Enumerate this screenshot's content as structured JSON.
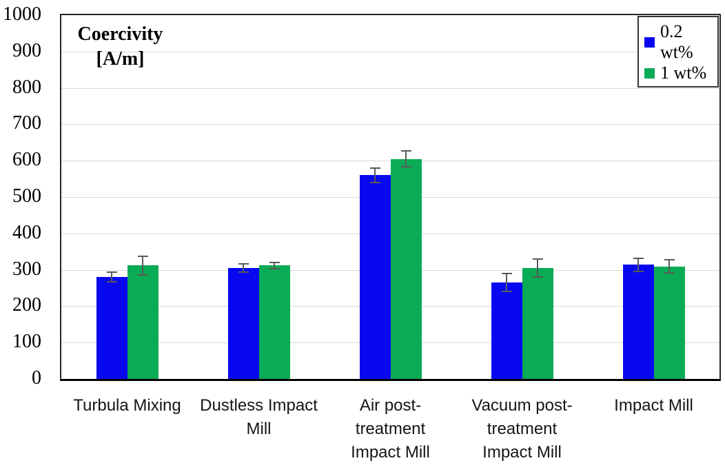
{
  "chart_data": {
    "type": "bar",
    "title": "Coercivity [A/m]",
    "title_lines": [
      "Coercivity",
      "[A/m]"
    ],
    "xlabel": "",
    "ylabel": "Coercivity [A/m]",
    "ylim": [
      0,
      1000
    ],
    "yticks": [
      0,
      100,
      200,
      300,
      400,
      500,
      600,
      700,
      800,
      900,
      1000
    ],
    "grid": true,
    "legend_position": "top-right",
    "categories": [
      "Turbula Mixing",
      "Dustless Impact Mill",
      "Air post-treatment Impact Mill",
      "Vacuum post-treatment Impact Mill",
      "Impact Mill"
    ],
    "category_lines": [
      [
        "Turbula Mixing"
      ],
      [
        "Dustless Impact",
        "Mill"
      ],
      [
        "Air post-",
        "treatment",
        "Impact Mill"
      ],
      [
        "Vacuum post-",
        "treatment",
        "Impact Mill"
      ],
      [
        "Impact Mill"
      ]
    ],
    "series": [
      {
        "name": "0.2 wt%",
        "color": "#0808f0",
        "values": [
          280,
          305,
          560,
          265,
          314
        ],
        "errors": [
          15,
          13,
          22,
          26,
          20
        ]
      },
      {
        "name": "1 wt%",
        "color": "#0aab55",
        "values": [
          312,
          312,
          605,
          305,
          309
        ],
        "errors": [
          27,
          10,
          24,
          26,
          20
        ]
      }
    ],
    "colors": {
      "gridline": "#d9d9d9",
      "errorbar": "#595959",
      "plot_border": "#262626",
      "axis_line": "#000000",
      "background": "#ffffff"
    }
  }
}
